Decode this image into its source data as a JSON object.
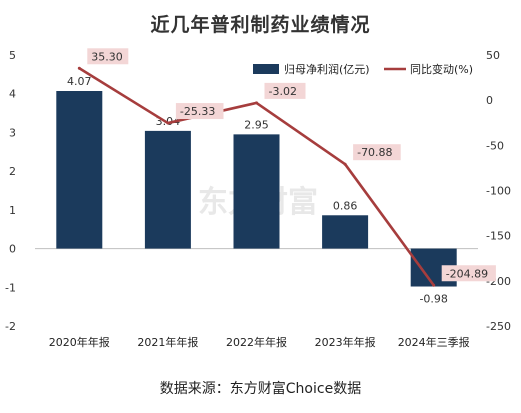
{
  "title": "近几年普利制药业绩情况",
  "source": "数据来源：东方财富Choice数据",
  "watermark": "东方财富",
  "colors": {
    "bar": "#1b3a5c",
    "line": "#a63d3d",
    "line_label_bg": "#f3d6d6",
    "axis": "#bfbfbf"
  },
  "chart_data": {
    "type": "bar",
    "categories": [
      "2020年年报",
      "2021年年报",
      "2022年年报",
      "2023年年报",
      "2024年三季报"
    ],
    "series": [
      {
        "name": "归母净利润(亿元)",
        "type": "bar",
        "axis": "left",
        "values": [
          4.07,
          3.04,
          2.95,
          0.86,
          -0.98
        ],
        "labels": [
          "4.07",
          "3.04",
          "2.95",
          "0.86",
          "-0.98"
        ]
      },
      {
        "name": "同比变动(%)",
        "type": "line",
        "axis": "right",
        "values": [
          35.3,
          -25.33,
          -3.02,
          -70.88,
          -204.89
        ],
        "labels": [
          "35.30",
          "-25.33",
          "-3.02",
          "-70.88",
          "-204.89"
        ]
      }
    ],
    "ylim_left": [
      -2,
      5
    ],
    "yticks_left": [
      "5",
      "4",
      "3",
      "2",
      "1",
      "0",
      "-1",
      "-2"
    ],
    "ylim_right": [
      -250,
      50
    ],
    "yticks_right": [
      "50",
      "0",
      "-50",
      "-100",
      "-150",
      "-200",
      "-250"
    ],
    "legend": "top-right",
    "grid": false
  }
}
